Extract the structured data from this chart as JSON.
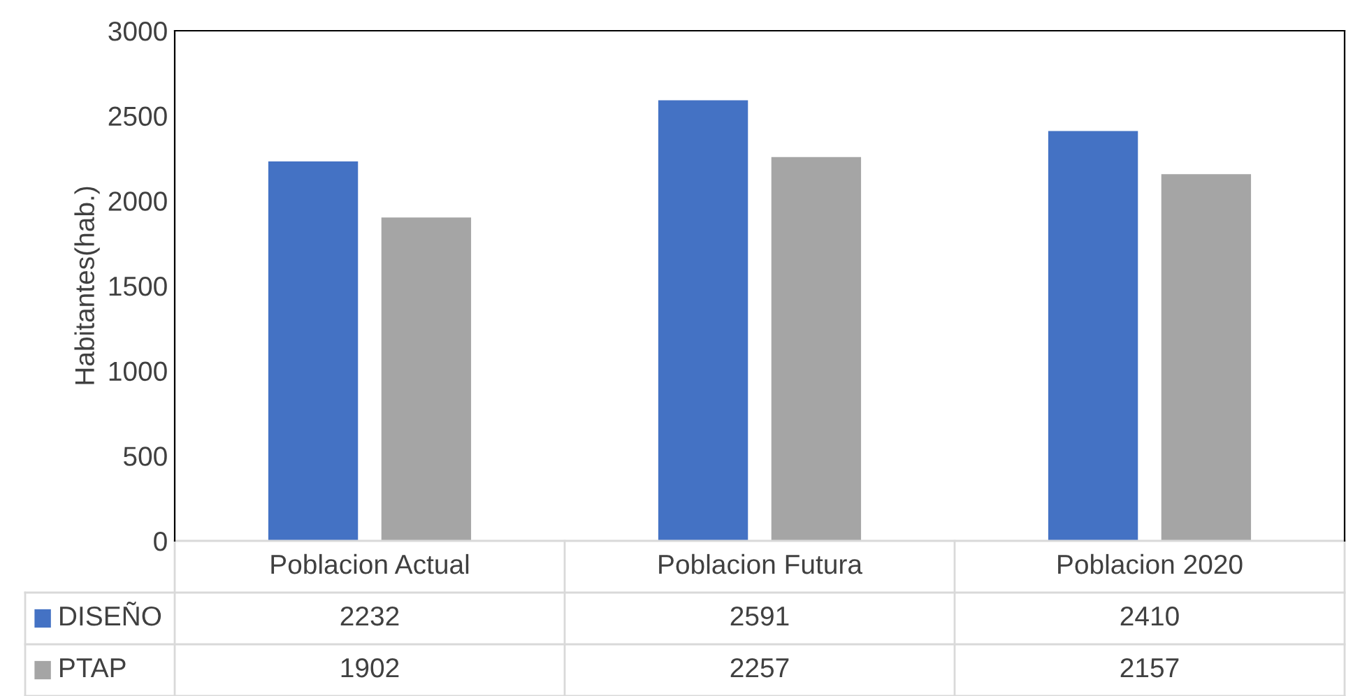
{
  "chart_data": {
    "type": "bar",
    "ylabel": "Habitantes(hab.)",
    "categories": [
      "Poblacion Actual",
      "Poblacion Futura",
      "Poblacion 2020"
    ],
    "series": [
      {
        "name": "DISEÑO",
        "color": "#4472c4",
        "values": [
          2232,
          2591,
          2410
        ]
      },
      {
        "name": "PTAP",
        "color": "#a5a5a5",
        "values": [
          1902,
          2257,
          2157
        ]
      }
    ],
    "ylim": [
      0,
      3000
    ],
    "yticks": [
      0,
      500,
      1000,
      1500,
      2000,
      2500,
      3000
    ],
    "grid": false,
    "data_labels": true,
    "legend": "bottom"
  }
}
